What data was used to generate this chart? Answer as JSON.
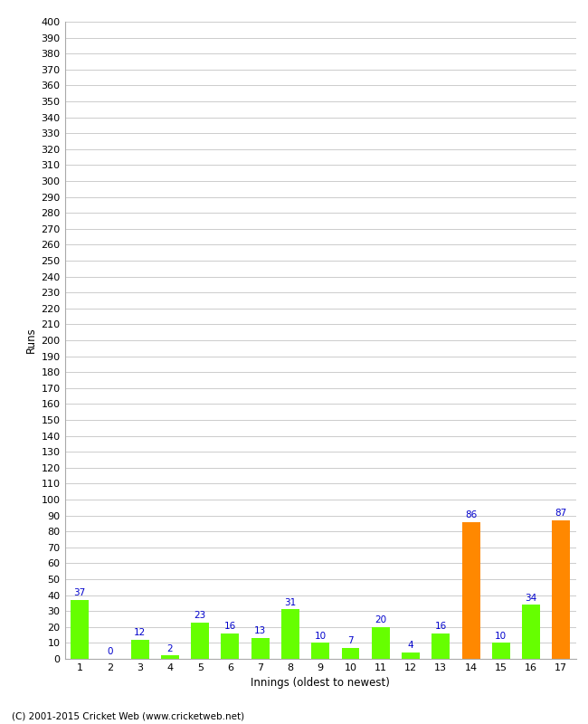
{
  "xlabel": "Innings (oldest to newest)",
  "ylabel": "Runs",
  "categories": [
    "1",
    "2",
    "3",
    "4",
    "5",
    "6",
    "7",
    "8",
    "9",
    "10",
    "11",
    "12",
    "13",
    "14",
    "15",
    "16",
    "17"
  ],
  "values": [
    37,
    0,
    12,
    2,
    23,
    16,
    13,
    31,
    10,
    7,
    20,
    4,
    16,
    86,
    10,
    34,
    87
  ],
  "bar_colors": [
    "#66ff00",
    "#66ff00",
    "#66ff00",
    "#66ff00",
    "#66ff00",
    "#66ff00",
    "#66ff00",
    "#66ff00",
    "#66ff00",
    "#66ff00",
    "#66ff00",
    "#66ff00",
    "#66ff00",
    "#ff8800",
    "#66ff00",
    "#66ff00",
    "#ff8800"
  ],
  "ylim": [
    0,
    400
  ],
  "label_color": "#0000cc",
  "background_color": "#ffffff",
  "grid_color": "#cccccc",
  "footer": "(C) 2001-2015 Cricket Web (www.cricketweb.net)"
}
